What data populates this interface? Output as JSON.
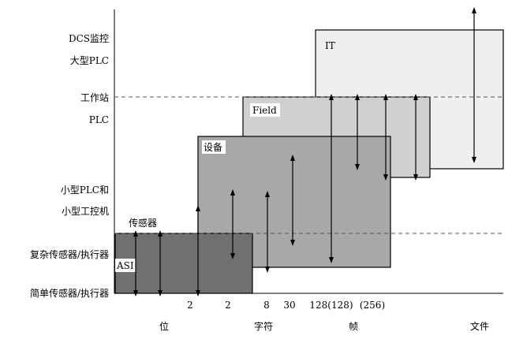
{
  "y_labels": {
    "dcs": "DCS监控",
    "large_plc": "大型PLC",
    "workstation": "工作站",
    "plc": "PLC",
    "small_plc": "小型PLC和",
    "small_ipc": "小型工控机",
    "sensor": "传感器",
    "complex_sensor": "复杂传感器/执行器",
    "simple_sensor": "简单传感器/执行器"
  },
  "boxes": {
    "it": {
      "label": "IT",
      "color": "#efefef"
    },
    "field": {
      "label": "Field",
      "color": "#d0d0d0"
    },
    "device": {
      "label": "设备",
      "color": "#a8a8a8"
    },
    "asi": {
      "label": "ASI",
      "color": "#707070"
    }
  },
  "x_numbers": {
    "n1": "2",
    "n2": "2",
    "n3": "8",
    "n4": "30",
    "n5": "128(128)",
    "n6": "(256)"
  },
  "x_categories": {
    "bit": "位",
    "char": "字符",
    "frame": "帧",
    "file": "文件"
  }
}
